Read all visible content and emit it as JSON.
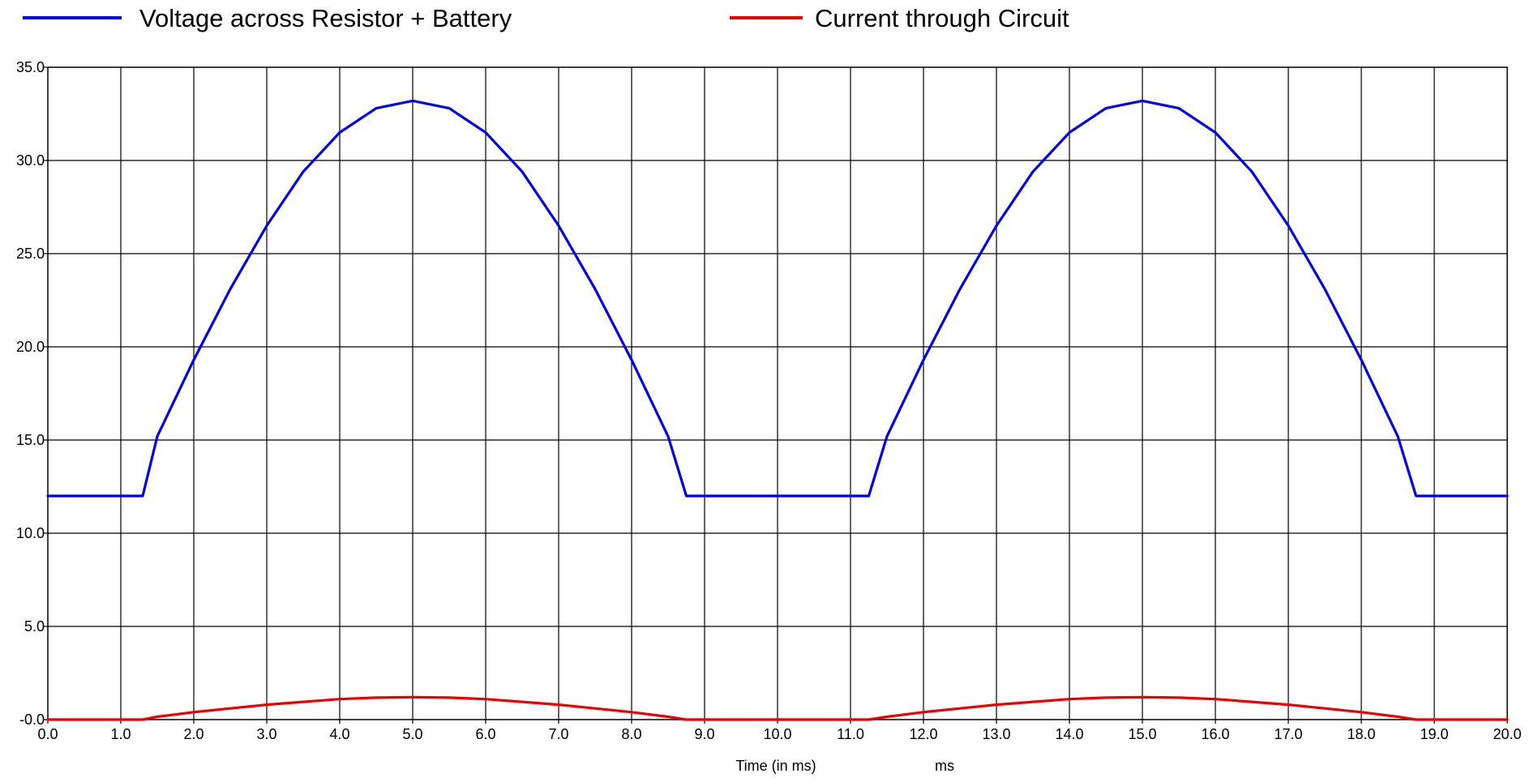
{
  "chart_data": {
    "type": "line",
    "xlabel": "Time (in ms)",
    "xunit": "ms",
    "ylabel": "",
    "xlim": [
      0,
      20
    ],
    "ylim": [
      0,
      35
    ],
    "x_ticks": [
      "0.0",
      "1.0",
      "2.0",
      "3.0",
      "4.0",
      "5.0",
      "6.0",
      "7.0",
      "8.0",
      "9.0",
      "10.0",
      "11.0",
      "12.0",
      "13.0",
      "14.0",
      "15.0",
      "16.0",
      "17.0",
      "18.0",
      "19.0",
      "20.0"
    ],
    "y_ticks": [
      "-0.0",
      "5.0",
      "10.0",
      "15.0",
      "20.0",
      "25.0",
      "30.0",
      "35.0"
    ],
    "grid": true,
    "legend_position": "top",
    "series": [
      {
        "name": "Voltage across Resistor + Battery",
        "color": "#0000ee",
        "x": [
          0.0,
          1.3,
          1.5,
          2.0,
          2.5,
          3.0,
          3.5,
          4.0,
          4.5,
          5.0,
          5.5,
          6.0,
          6.5,
          7.0,
          7.5,
          8.0,
          8.5,
          8.75,
          10.0,
          11.25,
          11.5,
          12.0,
          12.5,
          13.0,
          13.5,
          14.0,
          14.5,
          15.0,
          15.5,
          16.0,
          16.5,
          17.0,
          17.5,
          18.0,
          18.5,
          18.75,
          20.0
        ],
        "y": [
          12.0,
          12.0,
          15.2,
          19.3,
          23.1,
          26.5,
          29.4,
          31.5,
          32.8,
          33.2,
          32.8,
          31.5,
          29.4,
          26.5,
          23.1,
          19.3,
          15.2,
          12.0,
          12.0,
          12.0,
          15.2,
          19.3,
          23.1,
          26.5,
          29.4,
          31.5,
          32.8,
          33.2,
          32.8,
          31.5,
          29.4,
          26.5,
          23.1,
          19.3,
          15.2,
          12.0,
          12.0
        ]
      },
      {
        "name": "Current through Circuit",
        "color": "#ee0000",
        "x": [
          0.0,
          1.3,
          1.5,
          2.0,
          2.5,
          3.0,
          3.5,
          4.0,
          4.5,
          5.0,
          5.5,
          6.0,
          6.5,
          7.0,
          7.5,
          8.0,
          8.5,
          8.75,
          10.0,
          11.25,
          11.5,
          12.0,
          12.5,
          13.0,
          13.5,
          14.0,
          14.5,
          15.0,
          15.5,
          16.0,
          16.5,
          17.0,
          17.5,
          18.0,
          18.5,
          18.75,
          20.0
        ],
        "y": [
          0.0,
          0.0,
          0.15,
          0.4,
          0.6,
          0.8,
          0.95,
          1.1,
          1.18,
          1.2,
          1.18,
          1.1,
          0.95,
          0.8,
          0.6,
          0.4,
          0.15,
          0.0,
          0.0,
          0.0,
          0.15,
          0.4,
          0.6,
          0.8,
          0.95,
          1.1,
          1.18,
          1.2,
          1.18,
          1.1,
          0.95,
          0.8,
          0.6,
          0.4,
          0.15,
          0.0,
          0.0
        ]
      }
    ]
  }
}
